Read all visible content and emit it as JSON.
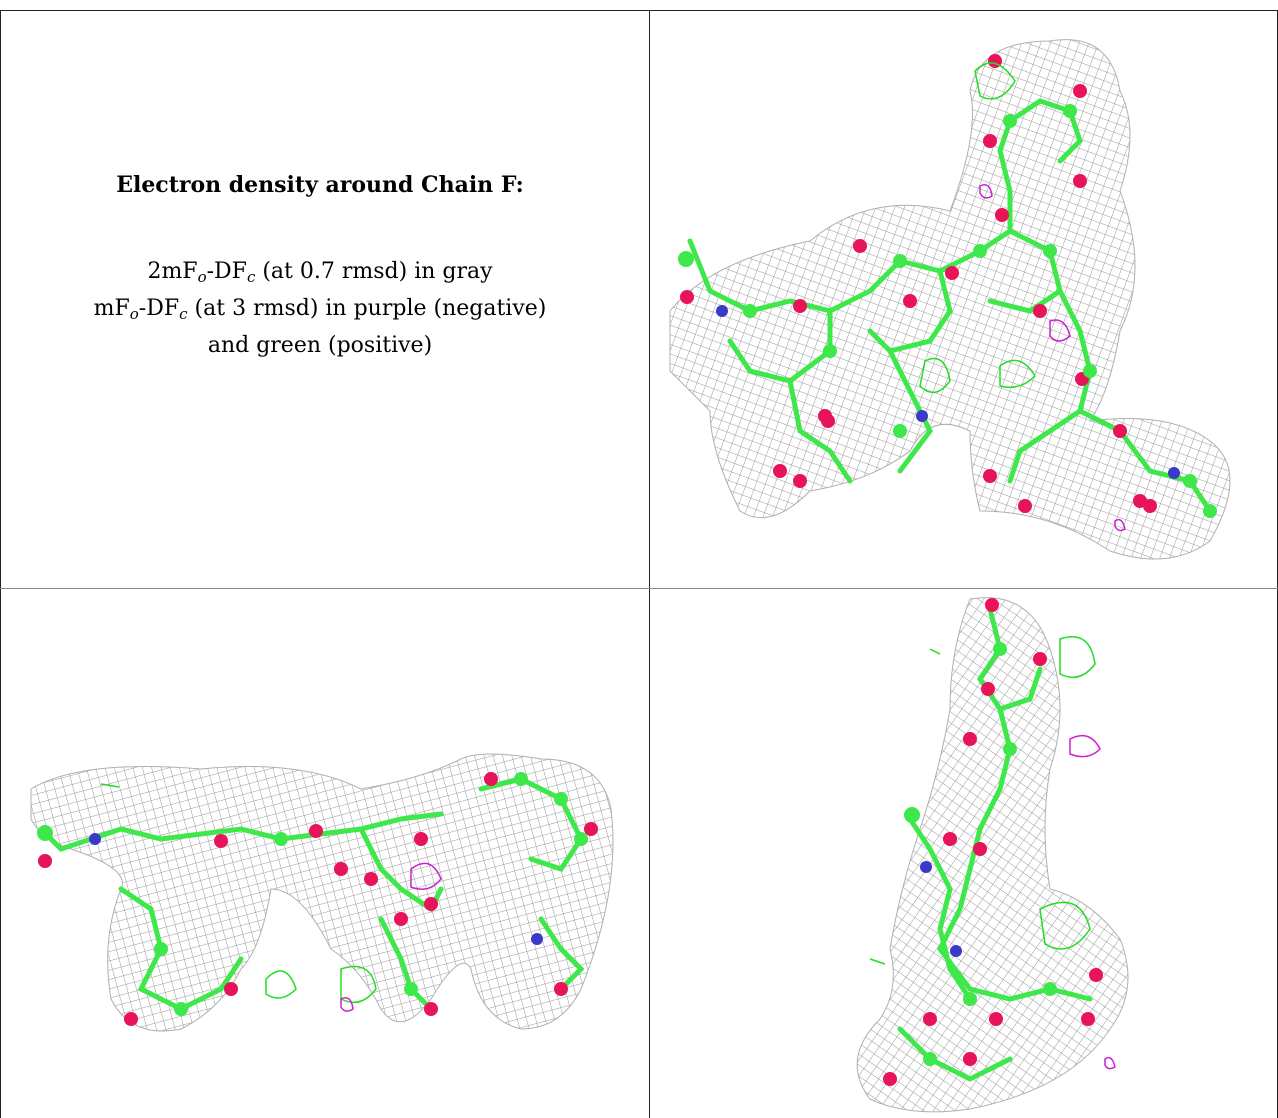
{
  "legend": {
    "title": "Electron density around Chain F:",
    "line1": {
      "pre": "2mF",
      "sub1": "o",
      "mid": "-DF",
      "sub2": "c",
      "post": " (at 0.7 rmsd) in gray"
    },
    "line2": {
      "pre": "mF",
      "sub1": "o",
      "mid": "-DF",
      "sub2": "c",
      "post": " (at 3 rmsd) in purple (negative)"
    },
    "line3": "and green (positive)"
  },
  "colors": {
    "mesh": "#9a9a9a",
    "carbon": "#3ee84a",
    "oxygen": "#e8145a",
    "nitrogen": "#3a3ac8",
    "positive_density": "#22dd22",
    "negative_density": "#cc22cc"
  },
  "panels": [
    {
      "name": "top-right",
      "view": "front"
    },
    {
      "name": "bottom-left",
      "view": "side"
    },
    {
      "name": "bottom-right",
      "view": "end-on"
    }
  ]
}
